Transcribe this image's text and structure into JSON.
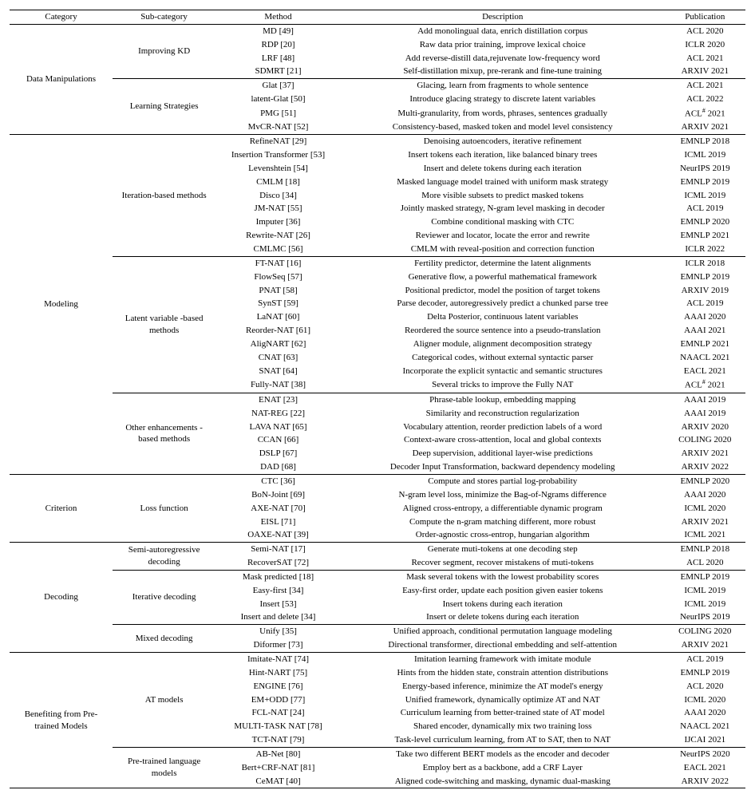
{
  "headers": {
    "category": "Category",
    "sub": "Sub-category",
    "method": "Method",
    "desc": "Description",
    "pub": "Publication"
  },
  "groups": [
    {
      "category": "Data Manipulations",
      "subs": [
        {
          "name": "Improving KD",
          "rows": [
            {
              "method": "MD [49]",
              "desc": "Add monolingual data, enrich distillation corpus",
              "pub": "ACL 2020"
            },
            {
              "method": "RDP [20]",
              "desc": "Raw data prior training, improve lexical choice",
              "pub": "ICLR 2020"
            },
            {
              "method": "LRF [48]",
              "desc": "Add reverse-distill data,rejuvenate low-frequency word",
              "pub": "ACL 2021"
            },
            {
              "method": "SDMRT [21]",
              "desc": "Self-distillation mixup, pre-rerank and fine-tune training",
              "pub": "ARXIV 2021"
            }
          ]
        },
        {
          "name": "Learning Strategies",
          "rows": [
            {
              "method": "Glat [37]",
              "desc": "Glacing, learn from fragments to whole sentence",
              "pub": "ACL 2021"
            },
            {
              "method": "latent-Glat [50]",
              "desc": "Introduce glacing strategy to discrete latent variables",
              "pub": "ACL 2022"
            },
            {
              "method": "PMG [51]",
              "desc": "Multi-granularity, from words, phrases, sentences gradually",
              "pub": "ACL# 2021"
            },
            {
              "method": "MvCR-NAT [52]",
              "desc": "Consistency-based, masked token and model level consistency",
              "pub": "ARXIV 2021"
            }
          ]
        }
      ]
    },
    {
      "category": "Modeling",
      "subs": [
        {
          "name": "Iteration-based methods",
          "rows": [
            {
              "method": "RefineNAT [29]",
              "desc": "Denoising autoencoders, iterative refinement",
              "pub": "EMNLP 2018"
            },
            {
              "method": "Insertion Transformer [53]",
              "desc": "Insert tokens each iteration, like balanced binary trees",
              "pub": "ICML 2019"
            },
            {
              "method": "Levenshtein [54]",
              "desc": "Insert and delete tokens during each iteration",
              "pub": "NeurIPS 2019"
            },
            {
              "method": "CMLM [18]",
              "desc": "Masked language model trained with uniform mask strategy",
              "pub": "EMNLP 2019"
            },
            {
              "method": "Disco [34]",
              "desc": "More visible subsets to predict masked tokens",
              "pub": "ICML 2019"
            },
            {
              "method": "JM-NAT [55]",
              "desc": "Jointly masked strategy, N-gram level masking in decoder",
              "pub": "ACL 2019"
            },
            {
              "method": "Imputer [36]",
              "desc": "Combine conditional masking with CTC",
              "pub": "EMNLP 2020"
            },
            {
              "method": "Rewrite-NAT [26]",
              "desc": "Reviewer and locator, locate the error and rewrite",
              "pub": "EMNLP 2021"
            },
            {
              "method": "CMLMC [56]",
              "desc": "CMLM with reveal-position and correction function",
              "pub": "ICLR 2022"
            }
          ]
        },
        {
          "name": "Latent variable -based methods",
          "rows": [
            {
              "method": "FT-NAT [16]",
              "desc": "Fertility predictor, determine the latent alignments",
              "pub": "ICLR 2018"
            },
            {
              "method": "FlowSeq [57]",
              "desc": "Generative flow, a powerful mathematical framework",
              "pub": "EMNLP 2019"
            },
            {
              "method": "PNAT [58]",
              "desc": "Positional predictor, model the position of target tokens",
              "pub": "ARXIV 2019"
            },
            {
              "method": "SynST [59]",
              "desc": "Parse decoder, autoregressively predict a chunked parse tree",
              "pub": "ACL 2019"
            },
            {
              "method": "LaNAT [60]",
              "desc": "Delta Posterior, continuous latent variables",
              "pub": "AAAI 2020"
            },
            {
              "method": "Reorder-NAT [61]",
              "desc": "Reordered the source sentence into a pseudo-translation",
              "pub": "AAAI 2021"
            },
            {
              "method": "AligNART [62]",
              "desc": "Aligner module, alignment decomposition strategy",
              "pub": "EMNLP 2021"
            },
            {
              "method": "CNAT [63]",
              "desc": "Categorical codes, without external syntactic parser",
              "pub": "NAACL 2021"
            },
            {
              "method": "SNAT [64]",
              "desc": "Incorporate the explicit syntactic and semantic structures",
              "pub": "EACL 2021"
            },
            {
              "method": "Fully-NAT [38]",
              "desc": "Several tricks to improve the Fully NAT",
              "pub": "ACL# 2021"
            }
          ]
        },
        {
          "name": "Other enhancements -based methods",
          "rows": [
            {
              "method": "ENAT [23]",
              "desc": "Phrase-table lookup, embedding mapping",
              "pub": "AAAI 2019"
            },
            {
              "method": "NAT-REG [22]",
              "desc": "Similarity and reconstruction regularization",
              "pub": "AAAI 2019"
            },
            {
              "method": "LAVA NAT [65]",
              "desc": "Vocabulary attention, reorder prediction labels of a word",
              "pub": "ARXIV 2020"
            },
            {
              "method": "CCAN [66]",
              "desc": "Context-aware cross-attention, local and global contexts",
              "pub": "COLING 2020"
            },
            {
              "method": "DSLP [67]",
              "desc": "Deep supervision, additional layer-wise predictions",
              "pub": "ARXIV 2021"
            },
            {
              "method": "DAD [68]",
              "desc": "Decoder Input Transformation, backward dependency modeling",
              "pub": "ARXIV 2022"
            }
          ]
        }
      ]
    },
    {
      "category": "Criterion",
      "subs": [
        {
          "name": "Loss function",
          "rows": [
            {
              "method": "CTC [36]",
              "desc": "Compute and stores partial log-probability",
              "pub": "EMNLP 2020"
            },
            {
              "method": "BoN-Joint [69]",
              "desc": "N-gram level loss, minimize the Bag-of-Ngrams difference",
              "pub": "AAAI 2020"
            },
            {
              "method": "AXE-NAT [70]",
              "desc": "Aligned cross-entropy, a differentiable dynamic program",
              "pub": "ICML 2020"
            },
            {
              "method": "EISL [71]",
              "desc": "Compute the n-gram matching different, more robust",
              "pub": "ARXIV 2021"
            },
            {
              "method": "OAXE-NAT [39]",
              "desc": "Order-agnostic cross-entrop, hungarian algorithm",
              "pub": "ICML 2021"
            }
          ]
        }
      ]
    },
    {
      "category": "Decoding",
      "subs": [
        {
          "name": "Semi-autoregressive decoding",
          "rows": [
            {
              "method": "Semi-NAT [17]",
              "desc": "Generate muti-tokens at one decoding step",
              "pub": "EMNLP 2018"
            },
            {
              "method": "RecoverSAT [72]",
              "desc": "Recover segment, recover mistakens of muti-tokens",
              "pub": "ACL 2020"
            }
          ]
        },
        {
          "name": "Iterative decoding",
          "rows": [
            {
              "method": "Mask predicted [18]",
              "desc": "Mask several tokens with the lowest probability scores",
              "pub": "EMNLP 2019"
            },
            {
              "method": "Easy-first [34]",
              "desc": "Easy-first order, update each position given easier tokens",
              "pub": "ICML 2019"
            },
            {
              "method": "Insert [53]",
              "desc": "Insert tokens during each iteration",
              "pub": "ICML 2019"
            },
            {
              "method": "Insert and delete [34]",
              "desc": "Insert or delete tokens during each iteration",
              "pub": "NeurIPS 2019"
            }
          ]
        },
        {
          "name": "Mixed decoding",
          "rows": [
            {
              "method": "Unify [35]",
              "desc": "Unified approach, conditional permutation language modeling",
              "pub": "COLING 2020"
            },
            {
              "method": "Diformer [73]",
              "desc": "Directional transformer, directional embedding and self-attention",
              "pub": "ARXIV 2021"
            }
          ]
        }
      ]
    },
    {
      "category": "Benefiting from Pre-trained Models",
      "subs": [
        {
          "name": "AT models",
          "rows": [
            {
              "method": "Imitate-NAT [74]",
              "desc": "Imitation learning framework with imitate module",
              "pub": "ACL 2019"
            },
            {
              "method": "Hint-NART [75]",
              "desc": "Hints from the hidden state, constrain attention distributions",
              "pub": "EMNLP 2019"
            },
            {
              "method": "ENGINE [76]",
              "desc": "Energy-based inference, minimize the AT model's energy",
              "pub": "ACL 2020"
            },
            {
              "method": "EM+ODD [77]",
              "desc": "Unified framework, dynamically optimize AT and NAT",
              "pub": "ICML 2020"
            },
            {
              "method": "FCL-NAT [24]",
              "desc": "Curriculum learning from better-trained state of AT model",
              "pub": "AAAI 2020"
            },
            {
              "method": "MULTI-TASK NAT [78]",
              "desc": "Shared encoder, dynamically mix two training loss",
              "pub": "NAACL 2021"
            },
            {
              "method": "TCT-NAT [79]",
              "desc": "Task-level curriculum learning, from AT to SAT, then to NAT",
              "pub": "IJCAI 2021"
            }
          ]
        },
        {
          "name": "Pre-trained language models",
          "rows": [
            {
              "method": "AB-Net [80]",
              "desc": "Take two different BERT models as the encoder and decoder",
              "pub": "NeurIPS 2020"
            },
            {
              "method": "Bert+CRF-NAT [81]",
              "desc": "Employ bert as a backbone, add a CRF Layer",
              "pub": "EACL 2021"
            },
            {
              "method": "CeMAT [40]",
              "desc": "Aligned code-switching and masking, dynamic dual-masking",
              "pub": "ARXIV 2022"
            }
          ]
        }
      ]
    }
  ]
}
